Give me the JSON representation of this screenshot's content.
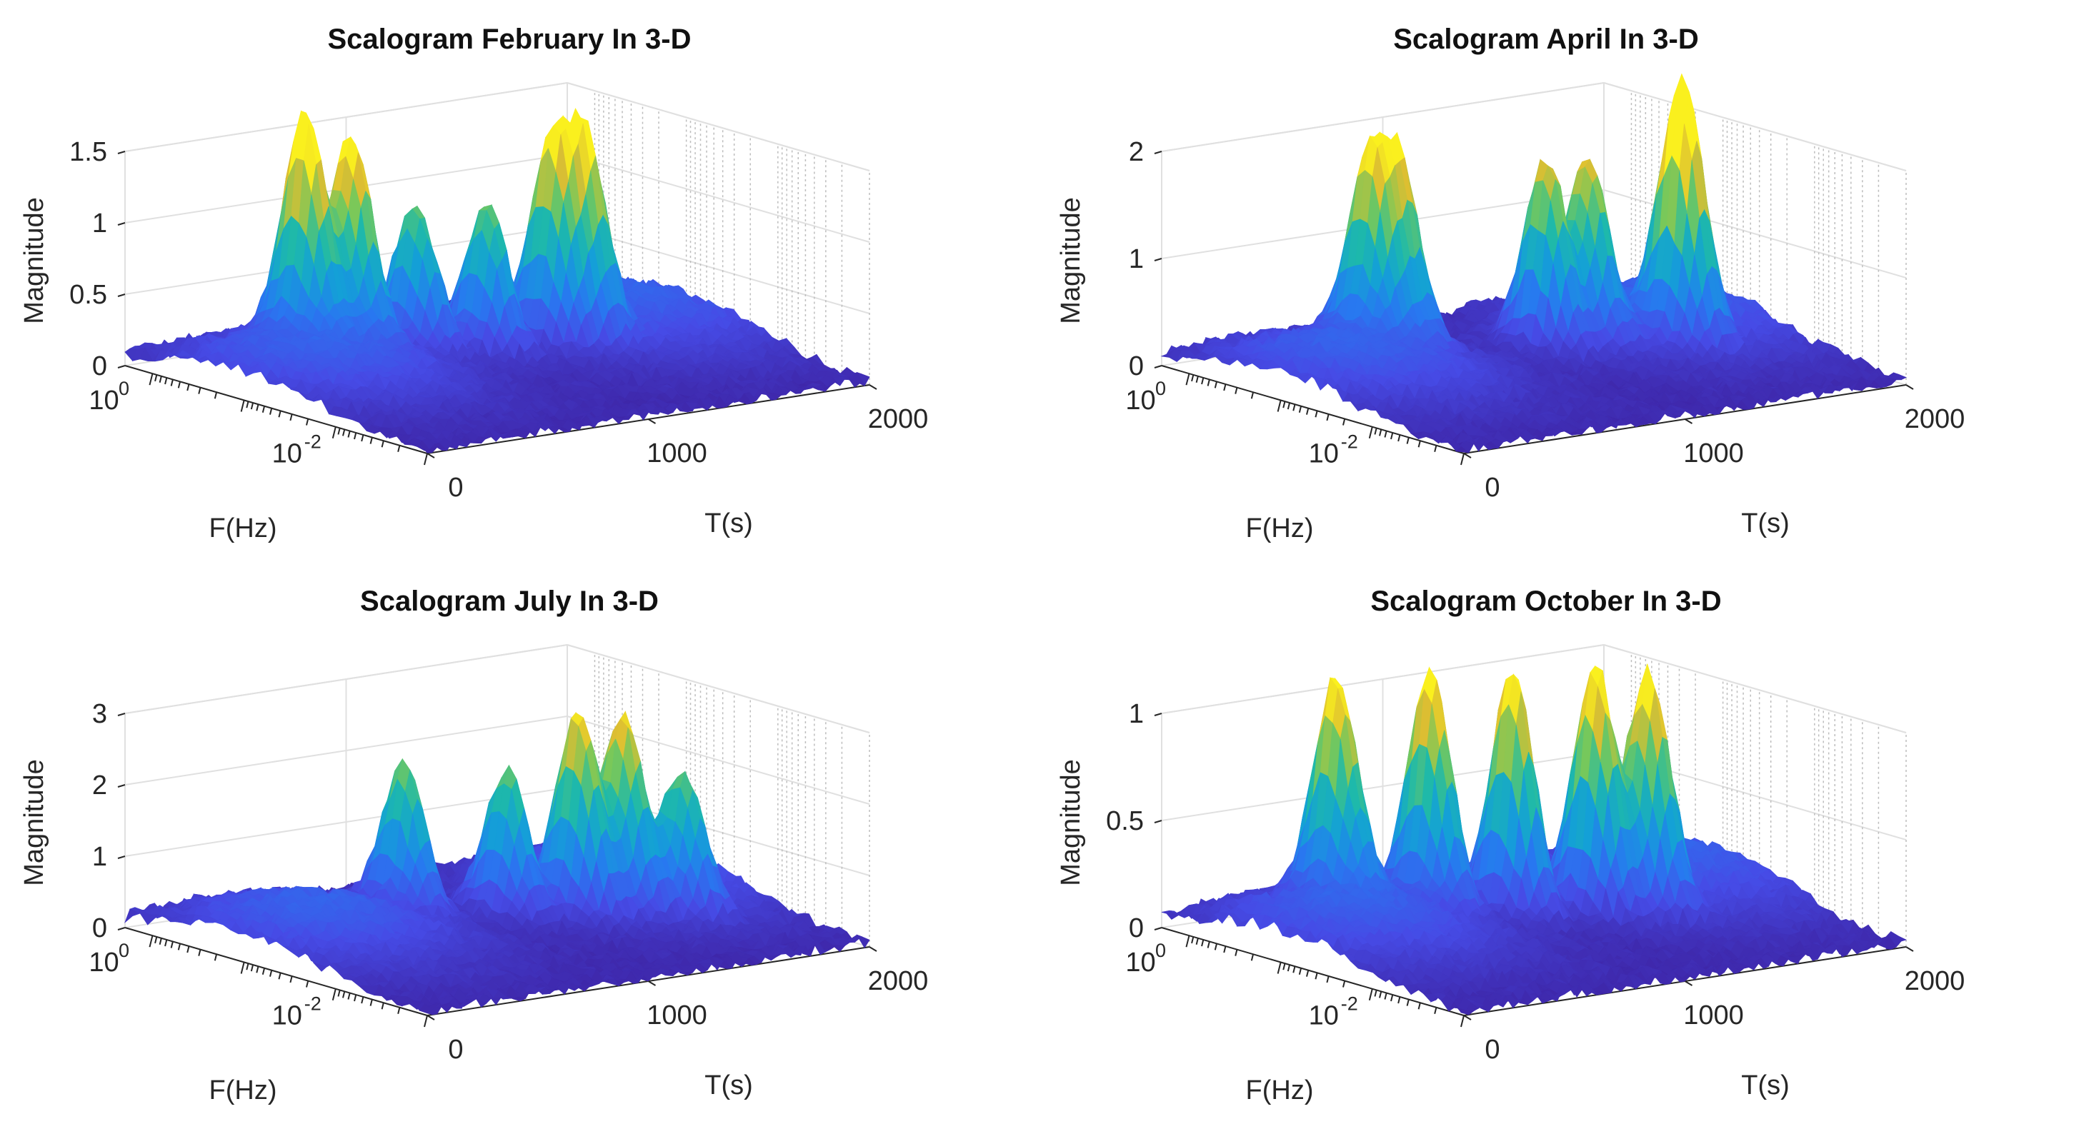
{
  "chart_data": [
    {
      "type": "surface",
      "title": "Scalogram February In 3-D",
      "xlabel": "F(Hz)",
      "ylabel": "T(s)",
      "zlabel": "Magnitude",
      "xscale": "log",
      "f_ticks": [
        {
          "base": "10",
          "exp": "0"
        },
        {
          "base": "10",
          "exp": "-2"
        }
      ],
      "t_ticks": [
        "0",
        "1000",
        "2000"
      ],
      "z_ticks": [
        "0",
        "0.5",
        "1",
        "1.5"
      ],
      "zlim": [
        0,
        1.5
      ],
      "zmax": 1.5,
      "ylim": [
        0,
        2000
      ],
      "peaks": [
        {
          "f": 0.35,
          "t": 500,
          "mag": 1.55
        },
        {
          "f": 0.25,
          "t": 650,
          "mag": 1.4
        },
        {
          "f": 0.2,
          "t": 900,
          "mag": 1.0
        },
        {
          "f": 0.1,
          "t": 1100,
          "mag": 1.05
        },
        {
          "f": 0.08,
          "t": 1350,
          "mag": 1.25
        },
        {
          "f": 0.06,
          "t": 1450,
          "mag": 1.3
        }
      ]
    },
    {
      "type": "surface",
      "title": "Scalogram April In 3-D",
      "xlabel": "F(Hz)",
      "ylabel": "T(s)",
      "zlabel": "Magnitude",
      "xscale": "log",
      "f_ticks": [
        {
          "base": "10",
          "exp": "0"
        },
        {
          "base": "10",
          "exp": "-2"
        }
      ],
      "t_ticks": [
        "0",
        "1000",
        "2000"
      ],
      "z_ticks": [
        "0",
        "1",
        "2"
      ],
      "zlim": [
        0,
        2
      ],
      "zmax": 2,
      "ylim": [
        0,
        2000
      ],
      "peaks": [
        {
          "f": 0.3,
          "t": 600,
          "mag": 1.6
        },
        {
          "f": 0.25,
          "t": 700,
          "mag": 1.6
        },
        {
          "f": 0.1,
          "t": 1200,
          "mag": 1.7
        },
        {
          "f": 0.08,
          "t": 1350,
          "mag": 1.6
        },
        {
          "f": 0.03,
          "t": 1600,
          "mag": 2.3
        }
      ]
    },
    {
      "type": "surface",
      "title": "Scalogram July In 3-D",
      "xlabel": "F(Hz)",
      "ylabel": "T(s)",
      "zlabel": "Magnitude",
      "xscale": "log",
      "f_ticks": [
        {
          "base": "10",
          "exp": "0"
        },
        {
          "base": "10",
          "exp": "-2"
        }
      ],
      "t_ticks": [
        "0",
        "1000",
        "2000"
      ],
      "z_ticks": [
        "0",
        "1",
        "2",
        "3"
      ],
      "zlim": [
        0,
        3
      ],
      "zmax": 3,
      "ylim": [
        0,
        2000
      ],
      "peaks": [
        {
          "f": 0.2,
          "t": 850,
          "mag": 2.0
        },
        {
          "f": 0.08,
          "t": 1150,
          "mag": 2.0
        },
        {
          "f": 0.04,
          "t": 1350,
          "mag": 2.7
        },
        {
          "f": 0.03,
          "t": 1500,
          "mag": 2.5
        },
        {
          "f": 0.015,
          "t": 1650,
          "mag": 1.8
        }
      ]
    },
    {
      "type": "surface",
      "title": "Scalogram October In 3-D",
      "xlabel": "F(Hz)",
      "ylabel": "T(s)",
      "zlabel": "Magnitude",
      "xscale": "log",
      "f_ticks": [
        {
          "base": "10",
          "exp": "0"
        },
        {
          "base": "10",
          "exp": "-2"
        }
      ],
      "t_ticks": [
        "0",
        "1000",
        "2000"
      ],
      "z_ticks": [
        "0",
        "0.5",
        "1"
      ],
      "zlim": [
        0,
        1
      ],
      "zmax": 1.1,
      "ylim": [
        0,
        2000
      ],
      "peaks": [
        {
          "f": 0.4,
          "t": 500,
          "mag": 1.0
        },
        {
          "f": 0.2,
          "t": 800,
          "mag": 1.1
        },
        {
          "f": 0.1,
          "t": 1050,
          "mag": 1.15
        },
        {
          "f": 0.05,
          "t": 1300,
          "mag": 1.1
        },
        {
          "f": 0.03,
          "t": 1450,
          "mag": 1.05
        }
      ]
    }
  ]
}
